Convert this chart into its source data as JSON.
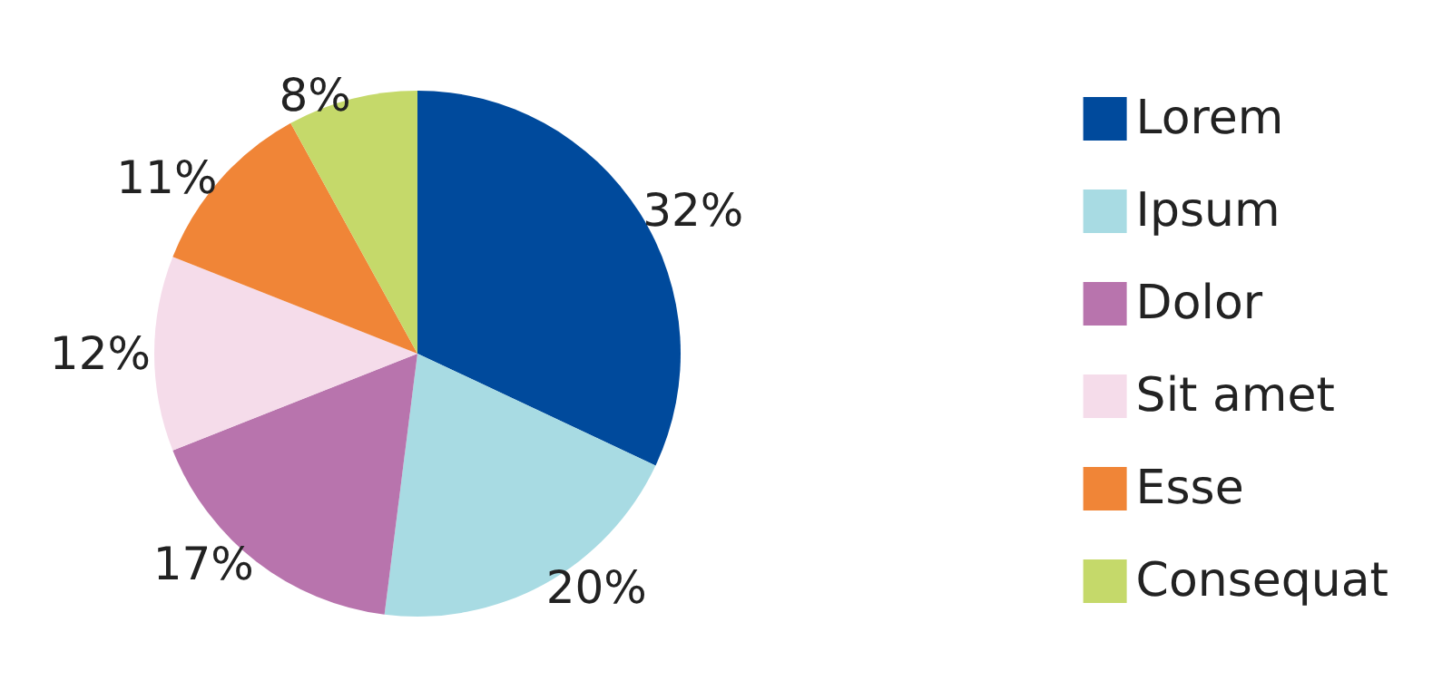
{
  "chart_data": {
    "type": "pie",
    "categories": [
      "Lorem",
      "Ipsum",
      "Dolor",
      "Sit amet",
      "Esse",
      "Consequat"
    ],
    "values": [
      32,
      20,
      17,
      12,
      11,
      8
    ],
    "colors": [
      "#004a9c",
      "#a8dbe3",
      "#b874ad",
      "#f5dcea",
      "#f08537",
      "#c5d96a"
    ],
    "value_labels": [
      "32%",
      "20%",
      "17%",
      "12%",
      "11%",
      "8%"
    ],
    "legend": "right"
  }
}
